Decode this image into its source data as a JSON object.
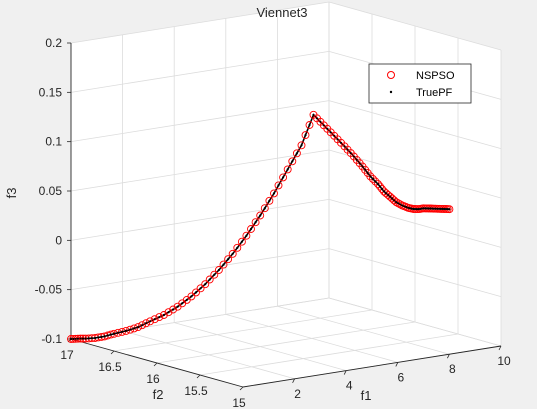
{
  "chart_data": {
    "type": "scatter3d",
    "title": "Viennet3",
    "xlabel": "f1",
    "ylabel": "f2",
    "zlabel": "f3",
    "xlim": [
      0,
      10
    ],
    "ylim": [
      15,
      17
    ],
    "zlim": [
      -0.1,
      0.2
    ],
    "xticks": [
      "2",
      "4",
      "6",
      "8",
      "10"
    ],
    "yticks": [
      "15",
      "15.5",
      "16",
      "16.5",
      "17"
    ],
    "zticks": [
      "-0.1",
      "-0.05",
      "0",
      "0.05",
      "0.1",
      "0.15",
      "0.2"
    ],
    "grid": true,
    "legend_position": "top-right",
    "series": [
      {
        "name": "NSPSO",
        "marker": "circle-open",
        "color": "#ff0000"
      },
      {
        "name": "TruePF",
        "marker": "dot",
        "color": "#000000"
      }
    ],
    "x": [
      0.0,
      0.2,
      0.4,
      0.6,
      0.8,
      1.0,
      1.2,
      1.4,
      1.6,
      1.8,
      2.0,
      2.2,
      2.4,
      2.6,
      2.8,
      3.0,
      3.2,
      3.4,
      3.6,
      3.8,
      4.0,
      4.2,
      4.4,
      4.6,
      4.8,
      5.0,
      5.2,
      5.4,
      5.6,
      5.8,
      6.0,
      6.2,
      6.4,
      6.6,
      6.8,
      7.0,
      7.2,
      7.4,
      7.6,
      7.8,
      8.0
    ],
    "y": [
      17.0,
      16.98,
      16.95,
      16.9,
      16.85,
      16.8,
      16.72,
      16.64,
      16.56,
      16.46,
      16.36,
      16.26,
      16.16,
      16.06,
      15.96,
      15.86,
      15.76,
      15.66,
      15.56,
      15.46,
      15.38,
      15.32,
      15.26,
      15.2,
      15.15,
      15.11,
      15.08,
      15.05,
      15.04,
      15.03,
      15.02,
      15.01,
      15.0,
      15.0,
      15.0,
      15.0,
      15.0,
      15.0,
      15.0,
      15.0,
      15.0
    ],
    "z": [
      -0.1,
      -0.1,
      -0.1,
      -0.099,
      -0.097,
      -0.094,
      -0.09,
      -0.085,
      -0.078,
      -0.07,
      -0.06,
      -0.048,
      -0.034,
      -0.018,
      0.0,
      0.02,
      0.042,
      0.066,
      0.092,
      0.118,
      0.15,
      0.14,
      0.13,
      0.12,
      0.11,
      0.1,
      0.09,
      0.082,
      0.074,
      0.068,
      0.062,
      0.058,
      0.055,
      0.053,
      0.052,
      0.052,
      0.051,
      0.05,
      0.049,
      0.048,
      0.047
    ]
  }
}
